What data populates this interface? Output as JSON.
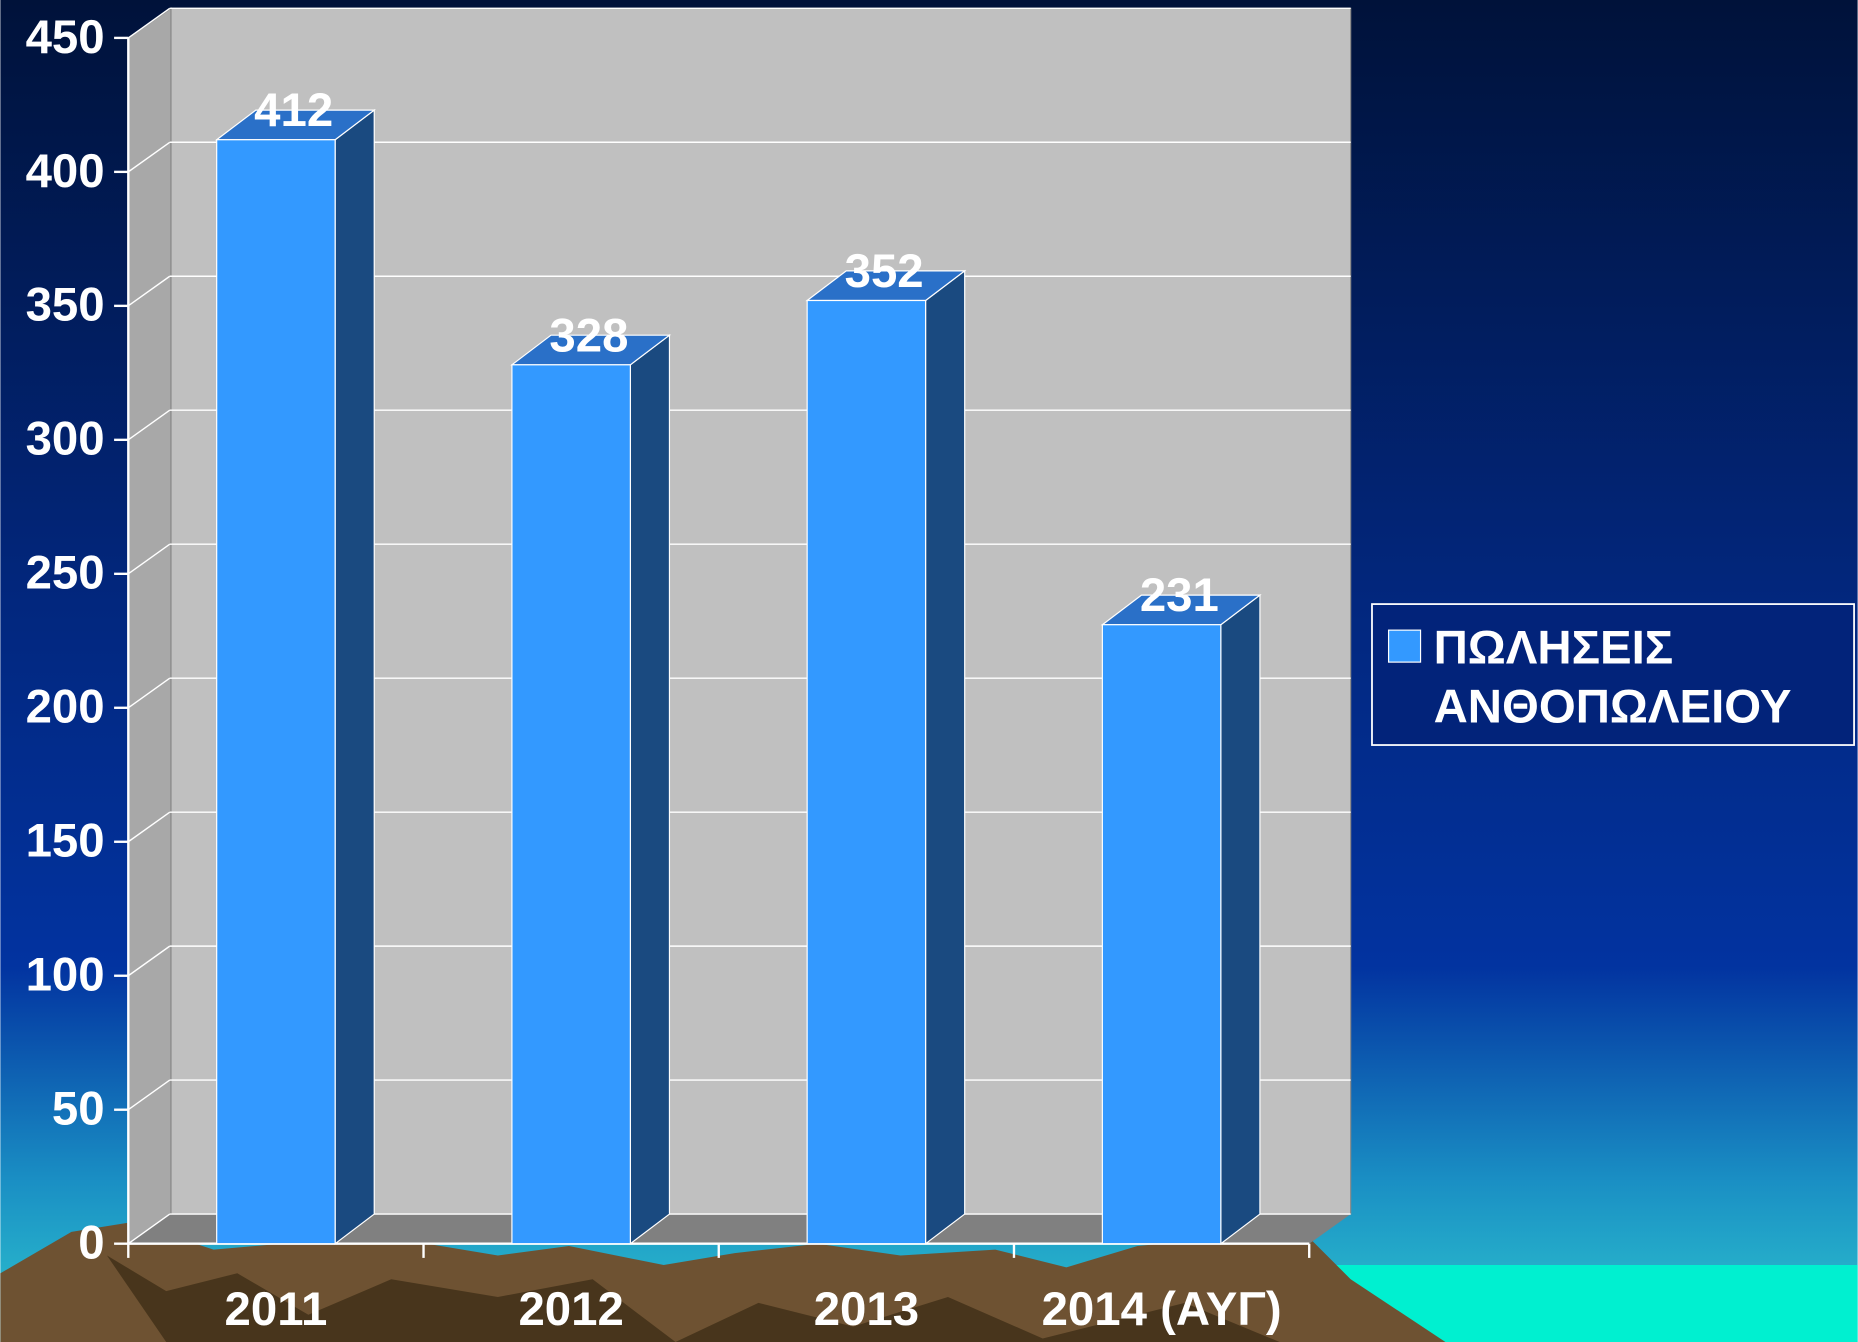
{
  "chart_data": {
    "type": "bar",
    "categories": [
      "2011",
      "2012",
      "2013",
      "2014 (ΑΥΓ)"
    ],
    "series": [
      {
        "name": "ΠΩΛΗΣΕΙΣ ΑΝΘΟΠΩΛΕΙΟΥ",
        "color": "#3399ff",
        "values": [
          412,
          328,
          352,
          231
        ]
      }
    ],
    "ylim": [
      0,
      450
    ],
    "yticks": [
      0,
      50,
      100,
      150,
      200,
      250,
      300,
      350,
      400,
      450
    ],
    "grid": true,
    "legend": "right"
  }
}
